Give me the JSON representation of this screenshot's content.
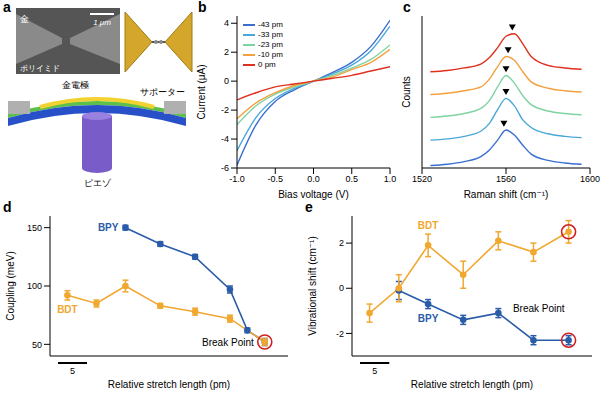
{
  "panel_a": {
    "panel": "a",
    "sem": {
      "material_top": "金",
      "material_bottom": "ポリイミド",
      "scale": "1 μm"
    },
    "labels": {
      "electrode": "金電極",
      "supporter": "サポーター",
      "piezo": "ピエゾ"
    }
  },
  "chart_data": [
    {
      "panel": "b",
      "type": "line",
      "x_label": "Bias voltage (V)",
      "y_label": "Current (μA)",
      "x": [
        -1,
        -0.75,
        -0.5,
        -0.25,
        0,
        0.25,
        0.5,
        0.75,
        1
      ],
      "xlim": [
        -1,
        1
      ],
      "xticks": [
        {
          "value": -1,
          "label": "-1.0"
        },
        {
          "value": -0.5,
          "label": "-0.5"
        },
        {
          "value": 0,
          "label": "0.0"
        },
        {
          "value": 0.5,
          "label": "0.5"
        },
        {
          "value": 1,
          "label": "1.0"
        }
      ],
      "ylim": [
        -6,
        4.5
      ],
      "yticks": [
        -6,
        -4,
        -2,
        0,
        2,
        4
      ],
      "legend": "upper left",
      "series": [
        {
          "name": "-43 pm",
          "color": "#3a6fd0",
          "values": [
            -5.8,
            -3.0,
            -1.4,
            -0.6,
            0,
            0.6,
            1.3,
            2.4,
            4.2
          ]
        },
        {
          "name": "-33 pm",
          "color": "#4aa8d8",
          "values": [
            -4.8,
            -2.5,
            -1.2,
            -0.5,
            0,
            0.5,
            1.1,
            2.1,
            3.8
          ]
        },
        {
          "name": "-23 pm",
          "color": "#7fd3a0",
          "values": [
            -3.0,
            -1.7,
            -0.9,
            -0.4,
            0,
            0.4,
            0.9,
            1.5,
            2.5
          ]
        },
        {
          "name": "-10 pm",
          "color": "#f5a040",
          "values": [
            -2.6,
            -1.5,
            -0.8,
            -0.3,
            0,
            0.3,
            0.8,
            1.3,
            2.2
          ]
        },
        {
          "name": "0 pm",
          "color": "#e03020",
          "values": [
            -1.3,
            -0.8,
            -0.4,
            -0.2,
            0,
            0.2,
            0.4,
            0.7,
            1.0
          ]
        }
      ]
    },
    {
      "panel": "c",
      "type": "line",
      "x_label": "Raman shift (cm⁻¹)",
      "y_label": "Counts",
      "tick_labels": "x",
      "x": [
        1524,
        1532,
        1540,
        1548,
        1552,
        1556,
        1560,
        1564,
        1568,
        1572,
        1580,
        1588,
        1596
      ],
      "xlim": [
        1520,
        1600
      ],
      "xticks": [
        1520,
        1560,
        1600
      ],
      "ylim": [
        0,
        6
      ],
      "series": [
        {
          "color": "#3a6fd0",
          "values": [
            0.1,
            0.15,
            0.25,
            0.45,
            0.7,
            1.1,
            1.5,
            1.3,
            0.9,
            0.55,
            0.3,
            0.2,
            0.15
          ],
          "peak": [
            1559,
            1.75
          ]
        },
        {
          "color": "#4aa8d8",
          "values": [
            1.1,
            1.15,
            1.25,
            1.45,
            1.75,
            2.3,
            2.75,
            2.45,
            1.9,
            1.6,
            1.35,
            1.25,
            1.2
          ],
          "peak": [
            1560,
            3.0
          ]
        },
        {
          "color": "#7fd3a0",
          "values": [
            2.0,
            2.05,
            2.15,
            2.35,
            2.65,
            3.2,
            3.65,
            3.35,
            2.85,
            2.5,
            2.25,
            2.15,
            2.1
          ],
          "peak": [
            1560,
            3.9
          ]
        },
        {
          "color": "#f5a040",
          "values": [
            2.9,
            2.95,
            3.05,
            3.2,
            3.5,
            4.0,
            4.4,
            4.25,
            3.8,
            3.4,
            3.15,
            3.05,
            3.0
          ],
          "peak": [
            1561,
            4.65
          ]
        },
        {
          "color": "#e03020",
          "values": [
            3.8,
            3.85,
            3.95,
            4.1,
            4.35,
            4.75,
            5.2,
            5.3,
            4.9,
            4.4,
            4.05,
            3.95,
            3.9
          ],
          "peak": [
            1563,
            5.55
          ]
        }
      ]
    },
    {
      "panel": "d",
      "type": "line",
      "x_label": "Relative stretch length (pm)",
      "y_label": "Coupling (meV)",
      "xlim": [
        -3,
        38
      ],
      "ylim": [
        40,
        160
      ],
      "yticks": [
        50,
        100,
        150
      ],
      "tick_labels": "y",
      "marker": "circle",
      "scale_bar": 5,
      "series": [
        {
          "name": "BPY",
          "color": "#2a5ca8",
          "x": [
            10,
            16,
            22,
            28,
            31,
            34
          ],
          "values": [
            150,
            136,
            125,
            97,
            62,
            52
          ],
          "errors": [
            2,
            2,
            2,
            3,
            2,
            3
          ]
        },
        {
          "name": "BDT",
          "color": "#f0a830",
          "x": [
            0,
            5,
            10,
            16,
            22,
            28,
            34
          ],
          "values": [
            92,
            85,
            100,
            83,
            78,
            72,
            52
          ],
          "errors": [
            4,
            3,
            5,
            2,
            3,
            3,
            3
          ]
        }
      ],
      "break_point": {
        "label": "Break Point",
        "color": "#d02020",
        "points": [
          [
            34,
            52
          ]
        ]
      }
    },
    {
      "panel": "e",
      "type": "line",
      "x_label": "Relative stretch length (pm)",
      "y_label": "Vibrational shift (cm⁻¹)",
      "xlim": [
        -3,
        38
      ],
      "ylim": [
        -3,
        3.2
      ],
      "yticks": [
        -2,
        0,
        2
      ],
      "tick_labels": "y",
      "marker": "circle",
      "scale_bar": 5,
      "series": [
        {
          "name": "BPY",
          "color": "#2a5ca8",
          "x": [
            5,
            10,
            16,
            22,
            28,
            34
          ],
          "values": [
            -0.1,
            -0.7,
            -1.4,
            -1.1,
            -2.3,
            -2.3
          ],
          "errors": [
            0.4,
            0.2,
            0.2,
            0.2,
            0.2,
            0.2
          ]
        },
        {
          "name": "BDT",
          "color": "#f0a830",
          "x": [
            0,
            5,
            10,
            16,
            22,
            28,
            34
          ],
          "values": [
            -1.1,
            0,
            1.9,
            0.6,
            2.1,
            1.6,
            2.5
          ],
          "errors": [
            0.4,
            0.6,
            0.5,
            0.6,
            0.4,
            0.4,
            0.5
          ]
        }
      ],
      "break_point": {
        "label": "Break Point",
        "color": "#d02020",
        "points": [
          [
            34,
            2.5
          ],
          [
            34,
            -2.3
          ]
        ]
      }
    }
  ]
}
